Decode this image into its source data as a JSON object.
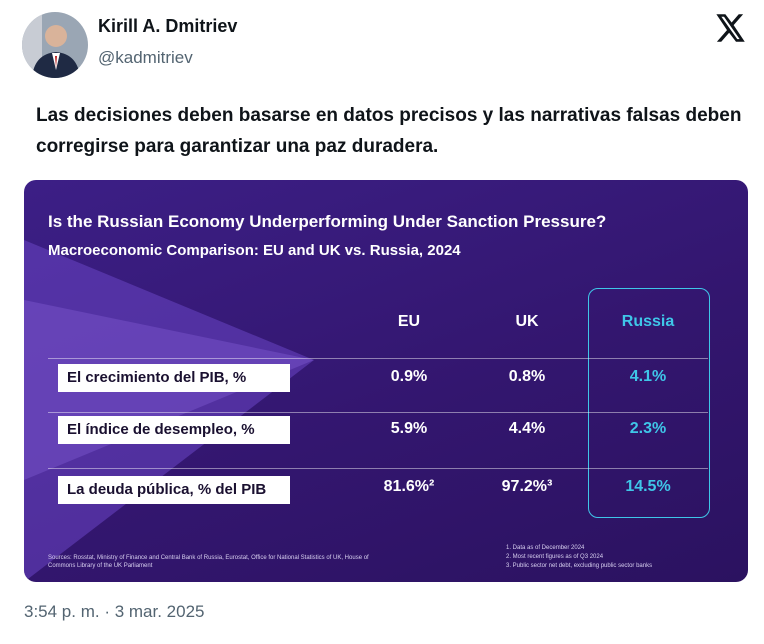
{
  "header": {
    "name": "Kirill A. Dmitriev",
    "handle": "@kadmitriev"
  },
  "tweet": {
    "text": "Las decisiones deben basarse en datos precisos y las narrativas falsas deben corregirse para garantizar una paz duradera."
  },
  "card": {
    "title": "Is the Russian Economy Underperforming Under Sanction Pressure?",
    "subtitle": "Macroeconomic Comparison: EU and UK vs. Russia, 2024",
    "table": {
      "columns": [
        "EU",
        "UK",
        "Russia"
      ],
      "rows": [
        [
          "El crecimiento del PIB, %",
          "0.9%",
          "0.8%",
          "4.1%"
        ],
        [
          "El índice de desempleo, %",
          "5.9%",
          "4.4%",
          "2.3%"
        ],
        [
          "La deuda pública, % del PIB",
          "81.6%²",
          "97.2%³",
          "14.5%"
        ]
      ]
    },
    "sources": "Sources: Rosstat, Ministry of Finance and Central Bank of Russia, Eurostat, Office for National Statistics of UK, House of Commons Library of the UK Parliament",
    "notes": [
      "1. Data as of December 2024",
      "2. Most recent figures as of Q3 2024",
      "3. Public sector net debt, excluding public sector banks"
    ]
  },
  "footer": {
    "timestamp": "3:54 p. m. · 3 mar. 2025"
  }
}
